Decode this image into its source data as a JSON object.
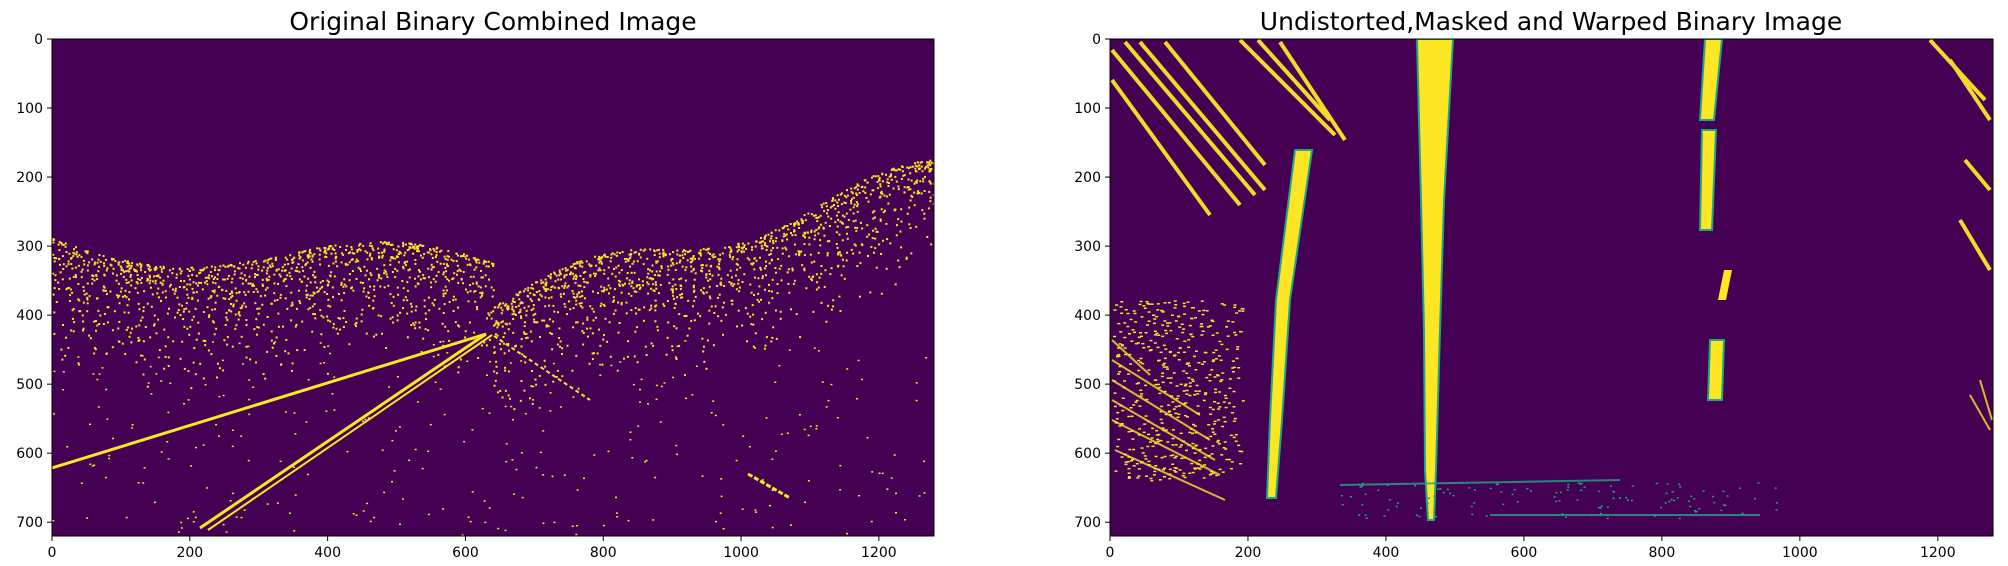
{
  "colors": {
    "background": "#440154",
    "foreground": "#fde725",
    "edge": "#21a685"
  },
  "panels": [
    {
      "title": "Original Binary Combined Image",
      "xticks": [
        "0",
        "200",
        "400",
        "600",
        "800",
        "1000",
        "1200"
      ],
      "yticks": [
        "0",
        "100",
        "200",
        "300",
        "400",
        "500",
        "600",
        "700"
      ]
    },
    {
      "title": "Undistorted,Masked and Warped Binary Image",
      "xticks": [
        "0",
        "200",
        "400",
        "600",
        "800",
        "1000",
        "1200"
      ],
      "yticks": [
        "0",
        "100",
        "200",
        "300",
        "400",
        "500",
        "600",
        "700"
      ]
    }
  ]
}
